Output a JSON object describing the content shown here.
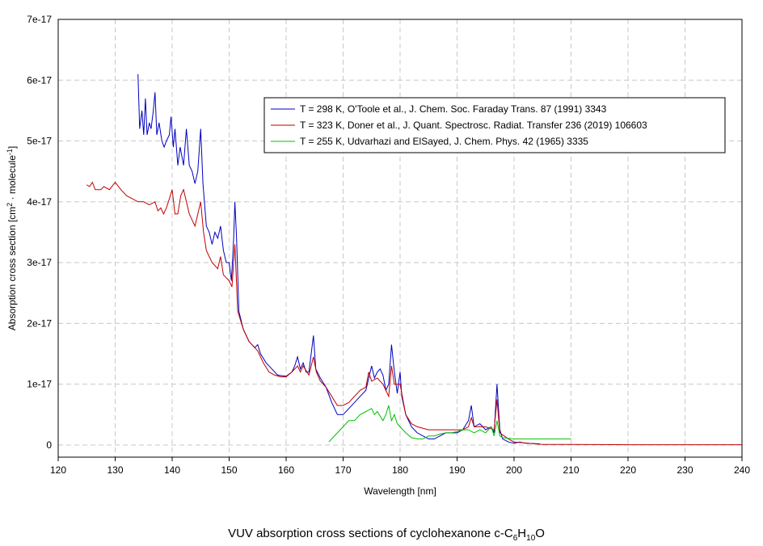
{
  "chart_data": {
    "type": "line",
    "title": [
      "VUV absorption cross sections of cyclohexanone c-C",
      "6",
      "H",
      "10",
      "O"
    ],
    "x_label": "Wavelength [nm]",
    "y_label": [
      "Absorption cross section [cm",
      "2",
      " · molecule",
      "-1",
      "]"
    ],
    "xlim": [
      120,
      240
    ],
    "xticks": [
      120,
      130,
      140,
      150,
      160,
      170,
      180,
      190,
      200,
      210,
      220,
      230,
      240
    ],
    "ylim": [
      -2e-18,
      7e-17
    ],
    "yticks": [
      0,
      {
        "value": 1e-17,
        "label": "1e-17"
      },
      {
        "value": 2e-17,
        "label": "2e-17"
      },
      {
        "value": 3e-17,
        "label": "3e-17"
      },
      {
        "value": 4e-17,
        "label": "4e-17"
      },
      {
        "value": 5e-17,
        "label": "5e-17"
      },
      {
        "value": 6e-17,
        "label": "6e-17"
      },
      {
        "value": 7e-17,
        "label": "7e-17"
      }
    ],
    "grid": true,
    "legend": "upper right",
    "series": [
      {
        "name": "T = 298 K, O'Toole et al., J. Chem. Soc. Faraday Trans. 87 (1991) 3343",
        "color": "#0000c0",
        "x": [
          134.0,
          134.3,
          134.7,
          135.0,
          135.3,
          135.6,
          136.0,
          136.3,
          136.7,
          137.0,
          137.3,
          137.7,
          138.2,
          138.6,
          139.0,
          139.5,
          139.8,
          140.2,
          140.5,
          141.0,
          141.4,
          142.0,
          142.5,
          143.0,
          143.5,
          144.0,
          144.5,
          145.0,
          145.4,
          146.0,
          146.5,
          147.0,
          147.5,
          148.0,
          148.5,
          149.0,
          149.5,
          150.0,
          150.4,
          150.8,
          151.0,
          151.3,
          151.7,
          152.5,
          153.5,
          154.5,
          155.0,
          155.5,
          156.5,
          157.5,
          158.5,
          160,
          161,
          161.5,
          162,
          162.5,
          163,
          163.5,
          164,
          164.8,
          165.2,
          166,
          167,
          168,
          169,
          170,
          171,
          172,
          173,
          174,
          174.5,
          175,
          175.5,
          176,
          176.5,
          177,
          177.5,
          178,
          178.5,
          179,
          179.5,
          180,
          180.3,
          181,
          182,
          183,
          184,
          185,
          186,
          187,
          188,
          189,
          190,
          191,
          192,
          192.5,
          193,
          194,
          195,
          196,
          196.5,
          197,
          197.5,
          198,
          199,
          200,
          201,
          202,
          204,
          204.5
        ],
        "values": [
          6.1e-17,
          5.2e-17,
          5.5e-17,
          5.1e-17,
          5.7e-17,
          5.1e-17,
          5.3e-17,
          5.2e-17,
          5.5e-17,
          5.8e-17,
          5.1e-17,
          5.3e-17,
          5e-17,
          4.9e-17,
          5e-17,
          5.1e-17,
          5.4e-17,
          4.9e-17,
          5.2e-17,
          4.6e-17,
          4.9e-17,
          4.6e-17,
          5.2e-17,
          4.6e-17,
          4.5e-17,
          4.3e-17,
          4.5e-17,
          5.2e-17,
          4.3e-17,
          3.6e-17,
          3.5e-17,
          3.3e-17,
          3.5e-17,
          3.4e-17,
          3.6e-17,
          3.2e-17,
          3e-17,
          3e-17,
          2.7e-17,
          3.4e-17,
          4e-17,
          3.4e-17,
          2.2e-17,
          1.9e-17,
          1.7e-17,
          1.6e-17,
          1.65e-17,
          1.5e-17,
          1.35e-17,
          1.25e-17,
          1.15e-17,
          1.13e-17,
          1.2e-17,
          1.3e-17,
          1.45e-17,
          1.25e-17,
          1.35e-17,
          1.2e-17,
          1.2e-17,
          1.8e-17,
          1.25e-17,
          1.1e-17,
          9.5e-18,
          7e-18,
          5e-18,
          5e-18,
          6e-18,
          7e-18,
          8e-18,
          9e-18,
          1.1e-17,
          1.3e-17,
          1.1e-17,
          1.2e-17,
          1.25e-17,
          1.15e-17,
          9e-18,
          1e-17,
          1.65e-17,
          1.2e-17,
          8.5e-18,
          1.2e-17,
          8e-18,
          5e-18,
          3e-18,
          2e-18,
          1.5e-18,
          1e-18,
          1e-18,
          1.5e-18,
          2e-18,
          2e-18,
          2e-18,
          2.5e-18,
          4e-18,
          6.5e-18,
          3e-18,
          3.5e-18,
          2.5e-18,
          3e-18,
          2e-18,
          1e-17,
          2.5e-18,
          1e-18,
          5e-19,
          3e-19,
          5e-19,
          3e-19,
          2e-19,
          2e-19
        ]
      },
      {
        "name": "T = 323 K, Doner et al., J. Quant. Spectrosc. Radiat. Transfer 236 (2019) 106603",
        "color": "#c00000",
        "x": [
          125,
          125.5,
          126,
          126.5,
          127.5,
          128,
          129,
          130,
          131,
          132,
          133,
          134,
          135,
          136,
          137,
          137.5,
          138,
          138.5,
          139,
          139.5,
          140,
          140.5,
          141,
          141.5,
          142,
          142.5,
          143,
          144,
          145,
          145.5,
          146,
          147,
          148,
          148.5,
          149,
          150,
          150.5,
          151,
          151.5,
          152.5,
          153.5,
          155,
          156,
          157,
          158,
          159,
          160,
          161,
          162,
          162.5,
          163,
          164,
          164.8,
          165.3,
          166,
          167,
          168,
          169,
          170,
          171,
          172,
          173,
          174,
          174.5,
          175,
          176,
          177,
          178,
          178.5,
          179,
          180,
          181,
          182,
          183,
          185,
          187,
          189,
          191,
          192,
          192.5,
          193,
          195,
          196.5,
          197,
          197.5,
          199,
          200,
          205,
          210,
          220,
          230,
          240
        ],
        "values": [
          4.28e-17,
          4.25e-17,
          4.32e-17,
          4.2e-17,
          4.2e-17,
          4.25e-17,
          4.2e-17,
          4.32e-17,
          4.2e-17,
          4.1e-17,
          4.05e-17,
          4e-17,
          4e-17,
          3.95e-17,
          4e-17,
          3.85e-17,
          3.9e-17,
          3.8e-17,
          3.9e-17,
          4.05e-17,
          4.2e-17,
          3.8e-17,
          3.8e-17,
          4.1e-17,
          4.2e-17,
          4e-17,
          3.8e-17,
          3.6e-17,
          4e-17,
          3.5e-17,
          3.2e-17,
          3e-17,
          2.9e-17,
          3.1e-17,
          2.8e-17,
          2.7e-17,
          2.6e-17,
          3.3e-17,
          2.2e-17,
          1.9e-17,
          1.7e-17,
          1.55e-17,
          1.35e-17,
          1.2e-17,
          1.15e-17,
          1.12e-17,
          1.12e-17,
          1.2e-17,
          1.3e-17,
          1.2e-17,
          1.3e-17,
          1.15e-17,
          1.45e-17,
          1.2e-17,
          1.05e-17,
          9.5e-18,
          8e-18,
          6.5e-18,
          6.5e-18,
          7e-18,
          8e-18,
          9e-18,
          9.5e-18,
          1.2e-17,
          1.05e-17,
          1.1e-17,
          1e-17,
          8e-18,
          1.3e-17,
          1e-17,
          1e-17,
          5e-18,
          3.5e-18,
          3e-18,
          2.5e-18,
          2.5e-18,
          2.5e-18,
          2.5e-18,
          3e-18,
          4.5e-18,
          3e-18,
          3e-18,
          2.5e-18,
          7.5e-18,
          2e-18,
          1e-18,
          5e-19,
          1e-19,
          1e-19,
          5e-20,
          5e-20,
          5e-20
        ]
      },
      {
        "name": "T = 255 K, Udvarhazi and ElSayed, J. Chem. Phys. 42 (1965) 3335",
        "color": "#00c000",
        "x": [
          167.5,
          168,
          169,
          170,
          170.5,
          171,
          172,
          173,
          174,
          175,
          175.5,
          176,
          177,
          177.5,
          178,
          178.5,
          179,
          179.5,
          180,
          181,
          182,
          183,
          184,
          185,
          186,
          187,
          188,
          189,
          190,
          191,
          192,
          193,
          194,
          195,
          196,
          196.5,
          197,
          197.5,
          198,
          200,
          205,
          210
        ],
        "values": [
          5e-19,
          1e-18,
          2e-18,
          3e-18,
          3.5e-18,
          4e-18,
          4e-18,
          5e-18,
          5.5e-18,
          6e-18,
          5e-18,
          5.5e-18,
          4e-18,
          5e-18,
          6.5e-18,
          4e-18,
          5e-18,
          3.5e-18,
          3e-18,
          2e-18,
          1.2e-18,
          1e-18,
          1e-18,
          1.5e-18,
          1.5e-18,
          1.8e-18,
          2e-18,
          2e-18,
          2.2e-18,
          2.5e-18,
          2.5e-18,
          2e-18,
          2.5e-18,
          2e-18,
          3e-18,
          1.5e-18,
          4e-18,
          1.5e-18,
          1.2e-18,
          1e-18,
          1e-18,
          1e-18
        ]
      }
    ]
  }
}
